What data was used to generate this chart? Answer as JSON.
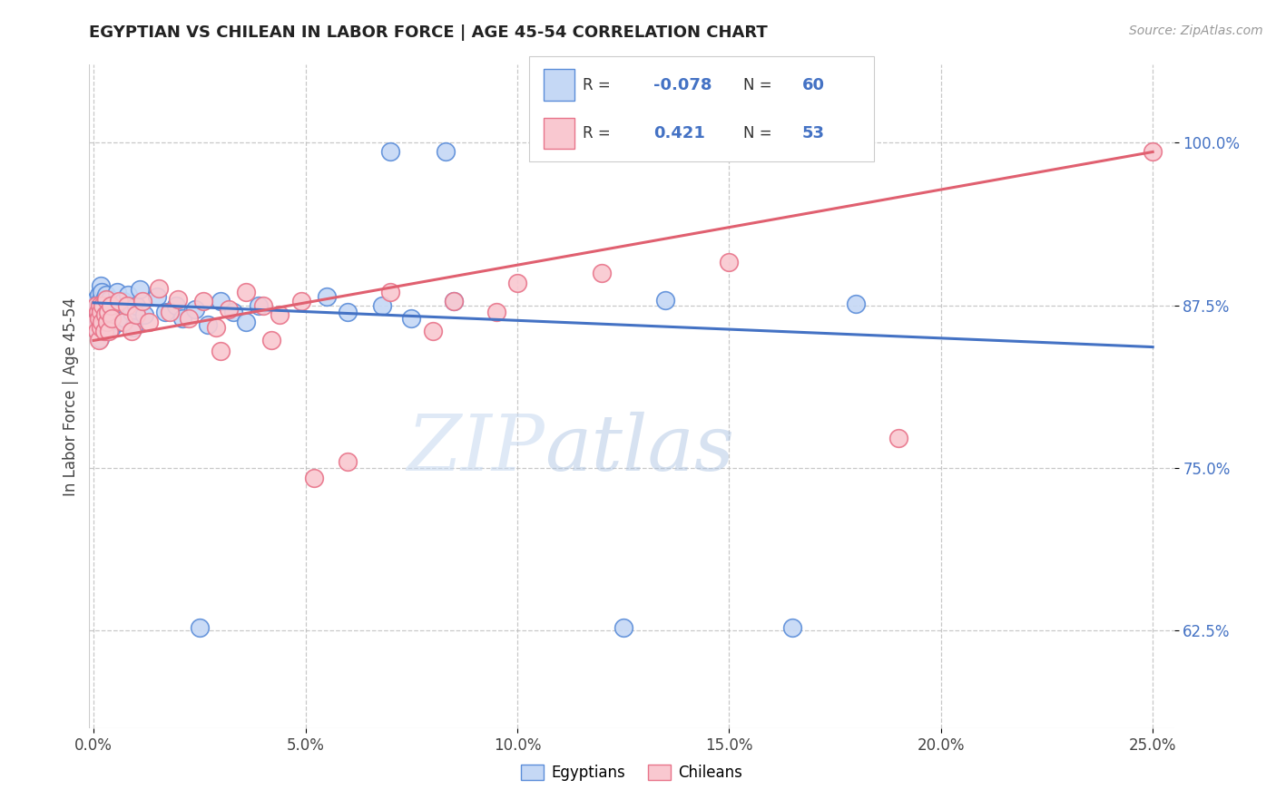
{
  "title": "EGYPTIAN VS CHILEAN IN LABOR FORCE | AGE 45-54 CORRELATION CHART",
  "source_text": "Source: ZipAtlas.com",
  "ylabel": "In Labor Force | Age 45-54",
  "xlim": [
    -0.001,
    0.255
  ],
  "ylim": [
    0.55,
    1.06
  ],
  "xticks": [
    0.0,
    0.05,
    0.1,
    0.15,
    0.2,
    0.25
  ],
  "xtick_labels": [
    "0.0%",
    "5.0%",
    "10.0%",
    "15.0%",
    "20.0%",
    "25.0%"
  ],
  "yticks": [
    0.625,
    0.75,
    0.875,
    1.0
  ],
  "ytick_labels": [
    "62.5%",
    "75.0%",
    "87.5%",
    "100.0%"
  ],
  "legend_R_blue": "-0.078",
  "legend_N_blue": "60",
  "legend_R_pink": "0.421",
  "legend_N_pink": "53",
  "blue_fill": "#c5d8f5",
  "blue_edge": "#5b8dd9",
  "pink_fill": "#f9c8d0",
  "pink_edge": "#e8748a",
  "trend_blue": "#4472c4",
  "trend_pink": "#e06070",
  "watermark_zip": "ZIP",
  "watermark_atlas": "atlas",
  "eg_trend_x0": 0.0,
  "eg_trend_y0": 0.877,
  "eg_trend_x1": 0.25,
  "eg_trend_y1": 0.843,
  "ch_trend_x0": 0.0,
  "ch_trend_y0": 0.848,
  "ch_trend_x1": 0.25,
  "ch_trend_y1": 0.993
}
